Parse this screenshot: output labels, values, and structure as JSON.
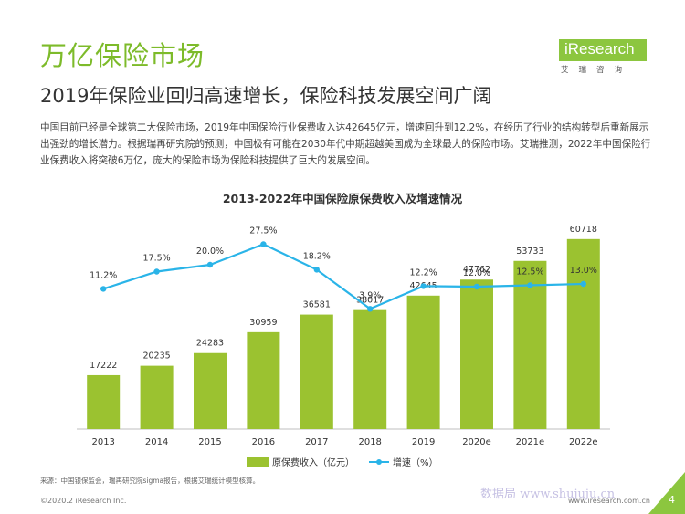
{
  "header": {
    "title": "万亿保险市场",
    "subtitle": "2019年保险业回归高速增长，保险科技发展空间广阔",
    "body": "中国目前已经是全球第二大保险市场，2019年中国保险行业保费收入达42645亿元，增速回升到12.2%，在经历了行业的结构转型后重新展示出强劲的增长潜力。根据瑞再研究院的预测，中国极有可能在2030年代中期超越美国成为全球最大的保险市场。艾瑞推测，2022年中国保险行业保费收入将突破6万亿，庞大的保险市场为保险科技提供了巨大的发展空间。"
  },
  "logo": {
    "brand": "iResearch",
    "sub": "艾瑞咨询"
  },
  "chart_data": {
    "type": "bar+line",
    "title": "2013-2022年中国保险原保费收入及增速情况",
    "categories": [
      "2013",
      "2014",
      "2015",
      "2016",
      "2017",
      "2018",
      "2019",
      "2020e",
      "2021e",
      "2022e"
    ],
    "series": [
      {
        "name": "原保费收入（亿元）",
        "type": "bar",
        "values": [
          17222,
          20235,
          24283,
          30959,
          36581,
          38017,
          42645,
          47762,
          53733,
          60718
        ],
        "color": "#9bc230"
      },
      {
        "name": "增速（%）",
        "type": "line",
        "values": [
          11.2,
          17.5,
          20.0,
          27.5,
          18.2,
          3.9,
          12.2,
          12.0,
          12.5,
          13.0
        ],
        "labels": [
          "11.2%",
          "17.5%",
          "20.0%",
          "27.5%",
          "18.2%",
          "3.9%",
          "12.2%",
          "12.0%",
          "12.5%",
          "13.0%"
        ],
        "color": "#2ab4e8"
      }
    ],
    "bar_ylim": [
      0,
      70000
    ],
    "line_ylim": [
      -40,
      40
    ],
    "legend_position": "bottom-center"
  },
  "footer": {
    "source": "来源：中国银保监会，瑞再研究院sigma报告，根据艾瑞统计模型核算。",
    "copyright": "©2020.2 iResearch Inc.",
    "website": "www.iresearch.com.cn",
    "watermark": "数据局 www.shujuju.cn",
    "page": "4"
  }
}
